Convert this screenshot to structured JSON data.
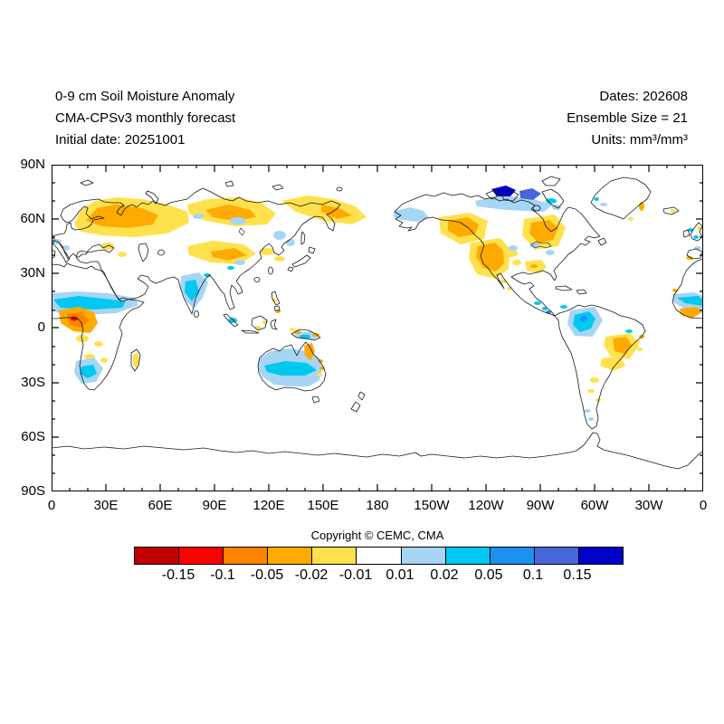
{
  "header": {
    "title_lines": [
      "0-9 cm Soil Moisture Anomaly",
      "CMA-CPSv3 monthly forecast",
      "Initial date: 20251001"
    ],
    "info_lines": [
      "Dates: 202608",
      "Ensemble Size = 21",
      "Units: mm³/mm³"
    ]
  },
  "map": {
    "x_axis": {
      "labels": [
        "0",
        "30E",
        "60E",
        "90E",
        "120E",
        "150E",
        "180",
        "150W",
        "120W",
        "90W",
        "60W",
        "30W",
        "0"
      ]
    },
    "y_axis": {
      "labels": [
        "90N",
        "60N",
        "30N",
        "0",
        "30S",
        "60S",
        "90S"
      ]
    }
  },
  "copyright": "Copyright © CEMC, CMA",
  "colorbar": {
    "labels": [
      "-0.15",
      "-0.1",
      "-0.05",
      "-0.02",
      "-0.01",
      "0.01",
      "0.02",
      "0.05",
      "0.1",
      "0.15"
    ],
    "segment_color_keys": [
      "darkred",
      "red",
      "orange",
      "amber",
      "yellow",
      "white",
      "lightblue",
      "cyan",
      "blue",
      "royalblue",
      "navy"
    ]
  },
  "palette": {
    "darkred": "#c00000",
    "red": "#ff0000",
    "orange": "#ff8200",
    "amber": "#ffaa00",
    "yellow": "#ffe14e",
    "white": "#ffffff",
    "lightblue": "#a6d5f5",
    "cyan": "#00c8f0",
    "blue": "#1e90f0",
    "royalblue": "#4666da",
    "navy": "#0000c8"
  },
  "chart_data": {
    "type": "heatmap",
    "title": "0-9 cm Soil Moisture Anomaly",
    "subtitle": "CMA-CPSv3 monthly forecast, initial date 20251001, forecast month 202608, ensemble size = 21",
    "units": "mm³/mm³",
    "projection": "equirectangular world map, longitude 0 → 360°E (Pacific-centered), latitude 90N → 90S",
    "x_ticks": [
      "0",
      "30E",
      "60E",
      "90E",
      "120E",
      "150E",
      "180",
      "150W",
      "120W",
      "90W",
      "60W",
      "30W",
      "0"
    ],
    "y_ticks": [
      "90N",
      "60N",
      "30N",
      "0",
      "30S",
      "60S",
      "90S"
    ],
    "contour_levels": [
      -0.15,
      -0.1,
      -0.05,
      -0.02,
      -0.01,
      0.01,
      0.02,
      0.05,
      0.1,
      0.15
    ],
    "legend_position": "bottom horizontal colorbar",
    "grid": false,
    "anomaly_regions": [
      {
        "region": "Scandinavia and northwest Russia",
        "value": "-0.02 to -0.05 (dry, amber band)"
      },
      {
        "region": "Siberia 50-75N (scattered)",
        "value": "-0.01 to -0.05 (dry, yellow/amber)"
      },
      {
        "region": "Central Asia",
        "value": "-0.01 to -0.05 (dry)"
      },
      {
        "region": "Sahel belt, Africa 10-17N",
        "value": "+0.02 to +0.05 (wet, cyan band)"
      },
      {
        "region": "Central Africa / Congo 0-10N",
        "value": "-0.05 to -0.15 (dry, orange with red core)"
      },
      {
        "region": "Southwest Africa",
        "value": "+0.02 to +0.05 (wet)"
      },
      {
        "region": "Madagascar",
        "value": "-0.01 to -0.02 (dry)"
      },
      {
        "region": "India",
        "value": "+0.01 to +0.05 (wet, cyan core)"
      },
      {
        "region": "Australia interior",
        "value": "+0.01 to +0.05 (wet, light blue with central cyan band)"
      },
      {
        "region": "Cape York / NE Australia",
        "value": "-0.02 to -0.05 (dry)"
      },
      {
        "region": "New Guinea",
        "value": "mixed wet interior, dry coastal spots"
      },
      {
        "region": "Alaska",
        "value": "+0.01 to +0.02 (wet)"
      },
      {
        "region": "Canadian Arctic islands",
        "value": "+0.05 to >+0.15 (wet, blue/navy)"
      },
      {
        "region": "Central Canada",
        "value": "-0.02 to -0.05 (dry)"
      },
      {
        "region": "Quebec / eastern Canada",
        "value": "-0.02 to -0.05 (dry)"
      },
      {
        "region": "Western United States",
        "value": "-0.02 to -0.05 (dry)"
      },
      {
        "region": "Southeastern United States",
        "value": "-0.01 to -0.02 (dry)"
      },
      {
        "region": "Northern Amazon / Colombia",
        "value": "+0.02 to +0.05 (wet)"
      },
      {
        "region": "Eastern Brazil",
        "value": "-0.01 to -0.05 (dry)"
      },
      {
        "region": "West Africa Guinea coast",
        "value": "wet band 10-16N (+0.02/+0.05), dry 5-8N (-0.02/-0.05)"
      }
    ]
  }
}
